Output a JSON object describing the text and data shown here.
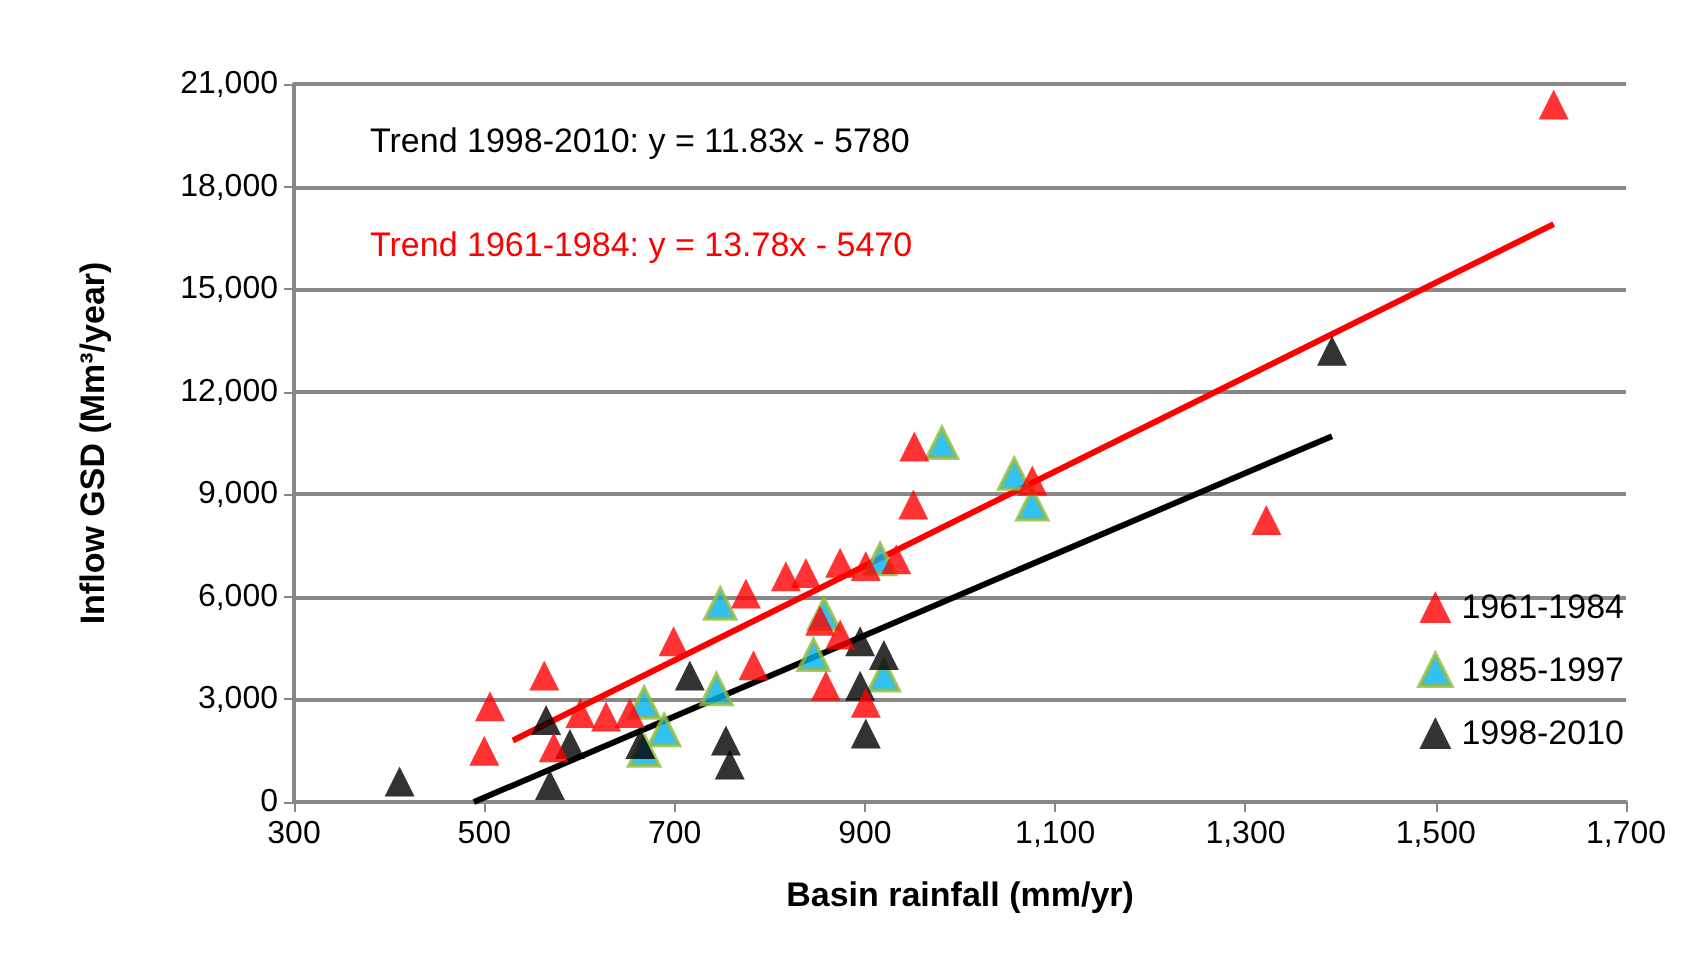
{
  "chart_data": {
    "type": "scatter",
    "xlabel": "Basin rainfall (mm/yr)",
    "ylabel": "Inflow GSD (Mm³/year)",
    "xlim": [
      300,
      1700
    ],
    "xticks": [
      300,
      500,
      700,
      900,
      {
        "value": 1100,
        "label": "1,100"
      },
      {
        "value": 1300,
        "label": "1,300"
      },
      {
        "value": 1500,
        "label": "1,500"
      },
      {
        "value": 1700,
        "label": "1,700"
      }
    ],
    "ylim": [
      0,
      21000
    ],
    "yticks": [
      0,
      {
        "value": 3000,
        "label": "3,000"
      },
      {
        "value": 6000,
        "label": "6,000"
      },
      {
        "value": 9000,
        "label": "9,000"
      },
      {
        "value": 12000,
        "label": "12,000"
      },
      {
        "value": 15000,
        "label": "15,000"
      },
      {
        "value": 18000,
        "label": "18,000"
      },
      {
        "value": 21000,
        "label": "21,000"
      }
    ],
    "grid": "y",
    "legend": "right",
    "marker": "triangle",
    "annotations": [
      "Trend 1998-2010: y = 11.83x - 5780",
      "Trend 1961-1984: y = 13.78x - 5470"
    ],
    "series": [
      {
        "name": "1961-1984",
        "color": "#ff0000",
        "x": [
          1624,
          1322,
          1076,
          952,
          951,
          933,
          901,
          874,
          838,
          817,
          775,
          699,
          783,
          853,
          874,
          859,
          901,
          563,
          506,
          500,
          573,
          601,
          628,
          653
        ],
        "values": [
          20400,
          8250,
          9400,
          10400,
          8700,
          7100,
          6900,
          7000,
          6700,
          6600,
          6100,
          4700,
          4000,
          5300,
          4900,
          3400,
          2900,
          3700,
          2800,
          1500,
          1600,
          2600,
          2500,
          2600
        ]
      },
      {
        "name": "1985-1997",
        "color": "#00b0f0",
        "x": [
          748,
          916,
          857,
          846,
          744,
          668,
          689,
          668,
          920,
          1057,
          1076,
          981
        ],
        "values": [
          5800,
          7100,
          5500,
          4300,
          3300,
          2900,
          2100,
          1500,
          3700,
          9600,
          8700,
          10500
        ]
      },
      {
        "name": "1998-2010",
        "color": "#000000",
        "x": [
          411,
          565,
          569,
          590,
          664,
          716,
          754,
          758,
          895,
          920,
          895,
          901,
          1391
        ],
        "values": [
          600,
          2400,
          500,
          1700,
          1700,
          3700,
          1800,
          1100,
          4700,
          4300,
          3400,
          2000,
          13200
        ]
      },
      {
        "type": "line",
        "color": "#000000",
        "marker": "none",
        "x": [
          489,
          1391
        ],
        "values": [
          0,
          10700
        ]
      },
      {
        "type": "line",
        "color": "#ff0000",
        "marker": "none",
        "x": [
          530,
          1624
        ],
        "values": [
          1800,
          16900
        ]
      }
    ]
  }
}
